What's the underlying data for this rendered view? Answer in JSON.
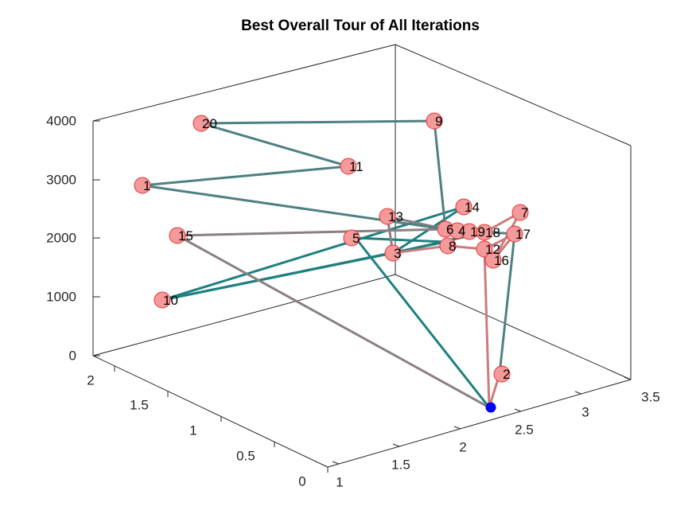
{
  "chart_data": {
    "type": "scatter",
    "title": "Best Overall Tour of All Iterations",
    "xlabel": "",
    "ylabel": "",
    "zlabel": "",
    "axes": {
      "x": {
        "ticks": [
          "1",
          "1.5",
          "2",
          "2.5",
          "3",
          "3.5"
        ],
        "range": [
          1,
          3.5
        ]
      },
      "y": {
        "ticks": [
          "0",
          "0.5",
          "1",
          "1.5",
          "2"
        ],
        "range": [
          0,
          2.2
        ]
      },
      "z": {
        "ticks": [
          "0",
          "1000",
          "2000",
          "3000",
          "4000"
        ],
        "range": [
          0,
          4000
        ]
      }
    },
    "grid": false,
    "box": true,
    "colors": {
      "node_fill": "#f59a9a",
      "node_edge": "#e83232",
      "start_node": "#0000ff",
      "segment_teal": "#1f7f80",
      "segment_grey": "#8a7f82",
      "segment_rose": "#cc7c7c",
      "segment_slate": "#4f8082"
    },
    "nodes": [
      {
        "label": "20"
      },
      {
        "label": "9"
      },
      {
        "label": "11"
      },
      {
        "label": "1"
      },
      {
        "label": "14"
      },
      {
        "label": "7"
      },
      {
        "label": "13"
      },
      {
        "label": "6"
      },
      {
        "label": "4"
      },
      {
        "label": "19"
      },
      {
        "label": "18"
      },
      {
        "label": "17"
      },
      {
        "label": "15"
      },
      {
        "label": "5"
      },
      {
        "label": "3"
      },
      {
        "label": "8"
      },
      {
        "label": "12"
      },
      {
        "label": "16"
      },
      {
        "label": "10"
      },
      {
        "label": "2"
      }
    ]
  }
}
